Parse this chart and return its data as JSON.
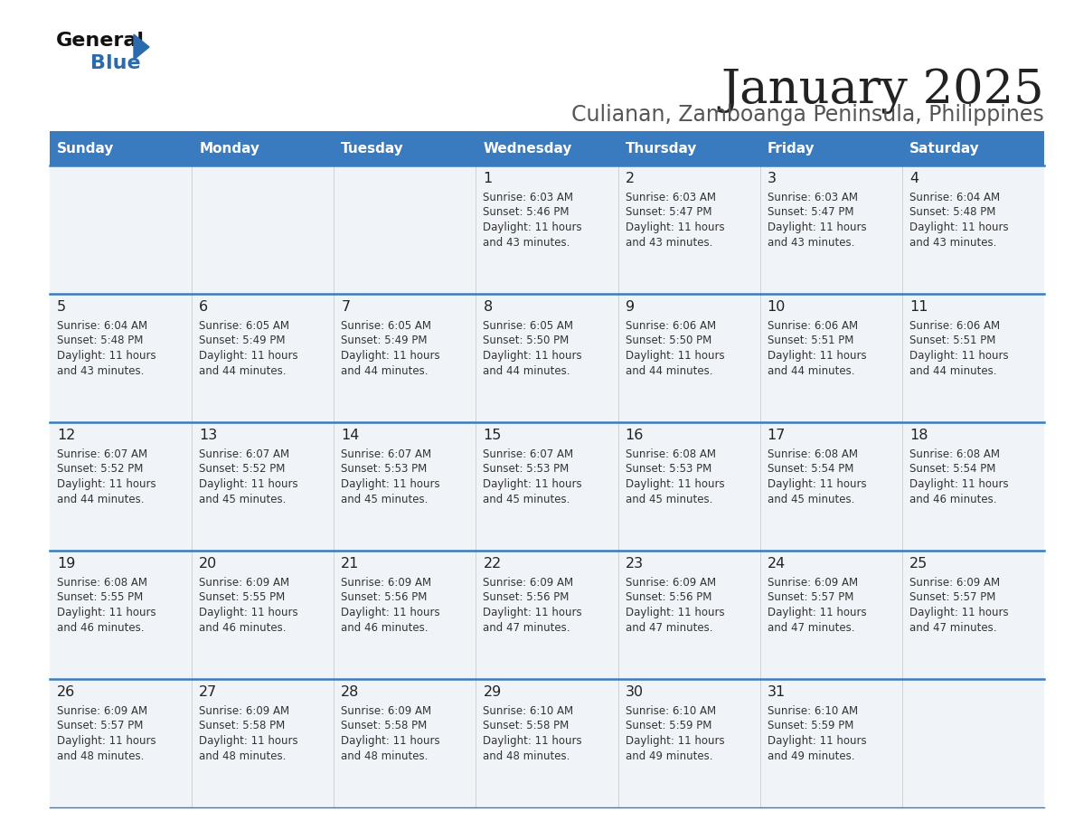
{
  "title": "January 2025",
  "subtitle": "Culianan, Zamboanga Peninsula, Philippines",
  "days_of_week": [
    "Sunday",
    "Monday",
    "Tuesday",
    "Wednesday",
    "Thursday",
    "Friday",
    "Saturday"
  ],
  "header_bg": "#3a7bbf",
  "header_text": "#ffffff",
  "row_bg": "#f0f4f8",
  "separator_color": "#3a7bbf",
  "day_num_color": "#222222",
  "cell_text_color": "#333333",
  "title_color": "#222222",
  "subtitle_color": "#555555",
  "calendar": [
    [
      null,
      null,
      null,
      {
        "day": 1,
        "sunrise": "6:03 AM",
        "sunset": "5:46 PM",
        "hours": "11 hours",
        "mins": "and 43 minutes."
      },
      {
        "day": 2,
        "sunrise": "6:03 AM",
        "sunset": "5:47 PM",
        "hours": "11 hours",
        "mins": "and 43 minutes."
      },
      {
        "day": 3,
        "sunrise": "6:03 AM",
        "sunset": "5:47 PM",
        "hours": "11 hours",
        "mins": "and 43 minutes."
      },
      {
        "day": 4,
        "sunrise": "6:04 AM",
        "sunset": "5:48 PM",
        "hours": "11 hours",
        "mins": "and 43 minutes."
      }
    ],
    [
      {
        "day": 5,
        "sunrise": "6:04 AM",
        "sunset": "5:48 PM",
        "hours": "11 hours",
        "mins": "and 43 minutes."
      },
      {
        "day": 6,
        "sunrise": "6:05 AM",
        "sunset": "5:49 PM",
        "hours": "11 hours",
        "mins": "and 44 minutes."
      },
      {
        "day": 7,
        "sunrise": "6:05 AM",
        "sunset": "5:49 PM",
        "hours": "11 hours",
        "mins": "and 44 minutes."
      },
      {
        "day": 8,
        "sunrise": "6:05 AM",
        "sunset": "5:50 PM",
        "hours": "11 hours",
        "mins": "and 44 minutes."
      },
      {
        "day": 9,
        "sunrise": "6:06 AM",
        "sunset": "5:50 PM",
        "hours": "11 hours",
        "mins": "and 44 minutes."
      },
      {
        "day": 10,
        "sunrise": "6:06 AM",
        "sunset": "5:51 PM",
        "hours": "11 hours",
        "mins": "and 44 minutes."
      },
      {
        "day": 11,
        "sunrise": "6:06 AM",
        "sunset": "5:51 PM",
        "hours": "11 hours",
        "mins": "and 44 minutes."
      }
    ],
    [
      {
        "day": 12,
        "sunrise": "6:07 AM",
        "sunset": "5:52 PM",
        "hours": "11 hours",
        "mins": "and 44 minutes."
      },
      {
        "day": 13,
        "sunrise": "6:07 AM",
        "sunset": "5:52 PM",
        "hours": "11 hours",
        "mins": "and 45 minutes."
      },
      {
        "day": 14,
        "sunrise": "6:07 AM",
        "sunset": "5:53 PM",
        "hours": "11 hours",
        "mins": "and 45 minutes."
      },
      {
        "day": 15,
        "sunrise": "6:07 AM",
        "sunset": "5:53 PM",
        "hours": "11 hours",
        "mins": "and 45 minutes."
      },
      {
        "day": 16,
        "sunrise": "6:08 AM",
        "sunset": "5:53 PM",
        "hours": "11 hours",
        "mins": "and 45 minutes."
      },
      {
        "day": 17,
        "sunrise": "6:08 AM",
        "sunset": "5:54 PM",
        "hours": "11 hours",
        "mins": "and 45 minutes."
      },
      {
        "day": 18,
        "sunrise": "6:08 AM",
        "sunset": "5:54 PM",
        "hours": "11 hours",
        "mins": "and 46 minutes."
      }
    ],
    [
      {
        "day": 19,
        "sunrise": "6:08 AM",
        "sunset": "5:55 PM",
        "hours": "11 hours",
        "mins": "and 46 minutes."
      },
      {
        "day": 20,
        "sunrise": "6:09 AM",
        "sunset": "5:55 PM",
        "hours": "11 hours",
        "mins": "and 46 minutes."
      },
      {
        "day": 21,
        "sunrise": "6:09 AM",
        "sunset": "5:56 PM",
        "hours": "11 hours",
        "mins": "and 46 minutes."
      },
      {
        "day": 22,
        "sunrise": "6:09 AM",
        "sunset": "5:56 PM",
        "hours": "11 hours",
        "mins": "and 47 minutes."
      },
      {
        "day": 23,
        "sunrise": "6:09 AM",
        "sunset": "5:56 PM",
        "hours": "11 hours",
        "mins": "and 47 minutes."
      },
      {
        "day": 24,
        "sunrise": "6:09 AM",
        "sunset": "5:57 PM",
        "hours": "11 hours",
        "mins": "and 47 minutes."
      },
      {
        "day": 25,
        "sunrise": "6:09 AM",
        "sunset": "5:57 PM",
        "hours": "11 hours",
        "mins": "and 47 minutes."
      }
    ],
    [
      {
        "day": 26,
        "sunrise": "6:09 AM",
        "sunset": "5:57 PM",
        "hours": "11 hours",
        "mins": "and 48 minutes."
      },
      {
        "day": 27,
        "sunrise": "6:09 AM",
        "sunset": "5:58 PM",
        "hours": "11 hours",
        "mins": "and 48 minutes."
      },
      {
        "day": 28,
        "sunrise": "6:09 AM",
        "sunset": "5:58 PM",
        "hours": "11 hours",
        "mins": "and 48 minutes."
      },
      {
        "day": 29,
        "sunrise": "6:10 AM",
        "sunset": "5:58 PM",
        "hours": "11 hours",
        "mins": "and 48 minutes."
      },
      {
        "day": 30,
        "sunrise": "6:10 AM",
        "sunset": "5:59 PM",
        "hours": "11 hours",
        "mins": "and 49 minutes."
      },
      {
        "day": 31,
        "sunrise": "6:10 AM",
        "sunset": "5:59 PM",
        "hours": "11 hours",
        "mins": "and 49 minutes."
      },
      null
    ]
  ]
}
